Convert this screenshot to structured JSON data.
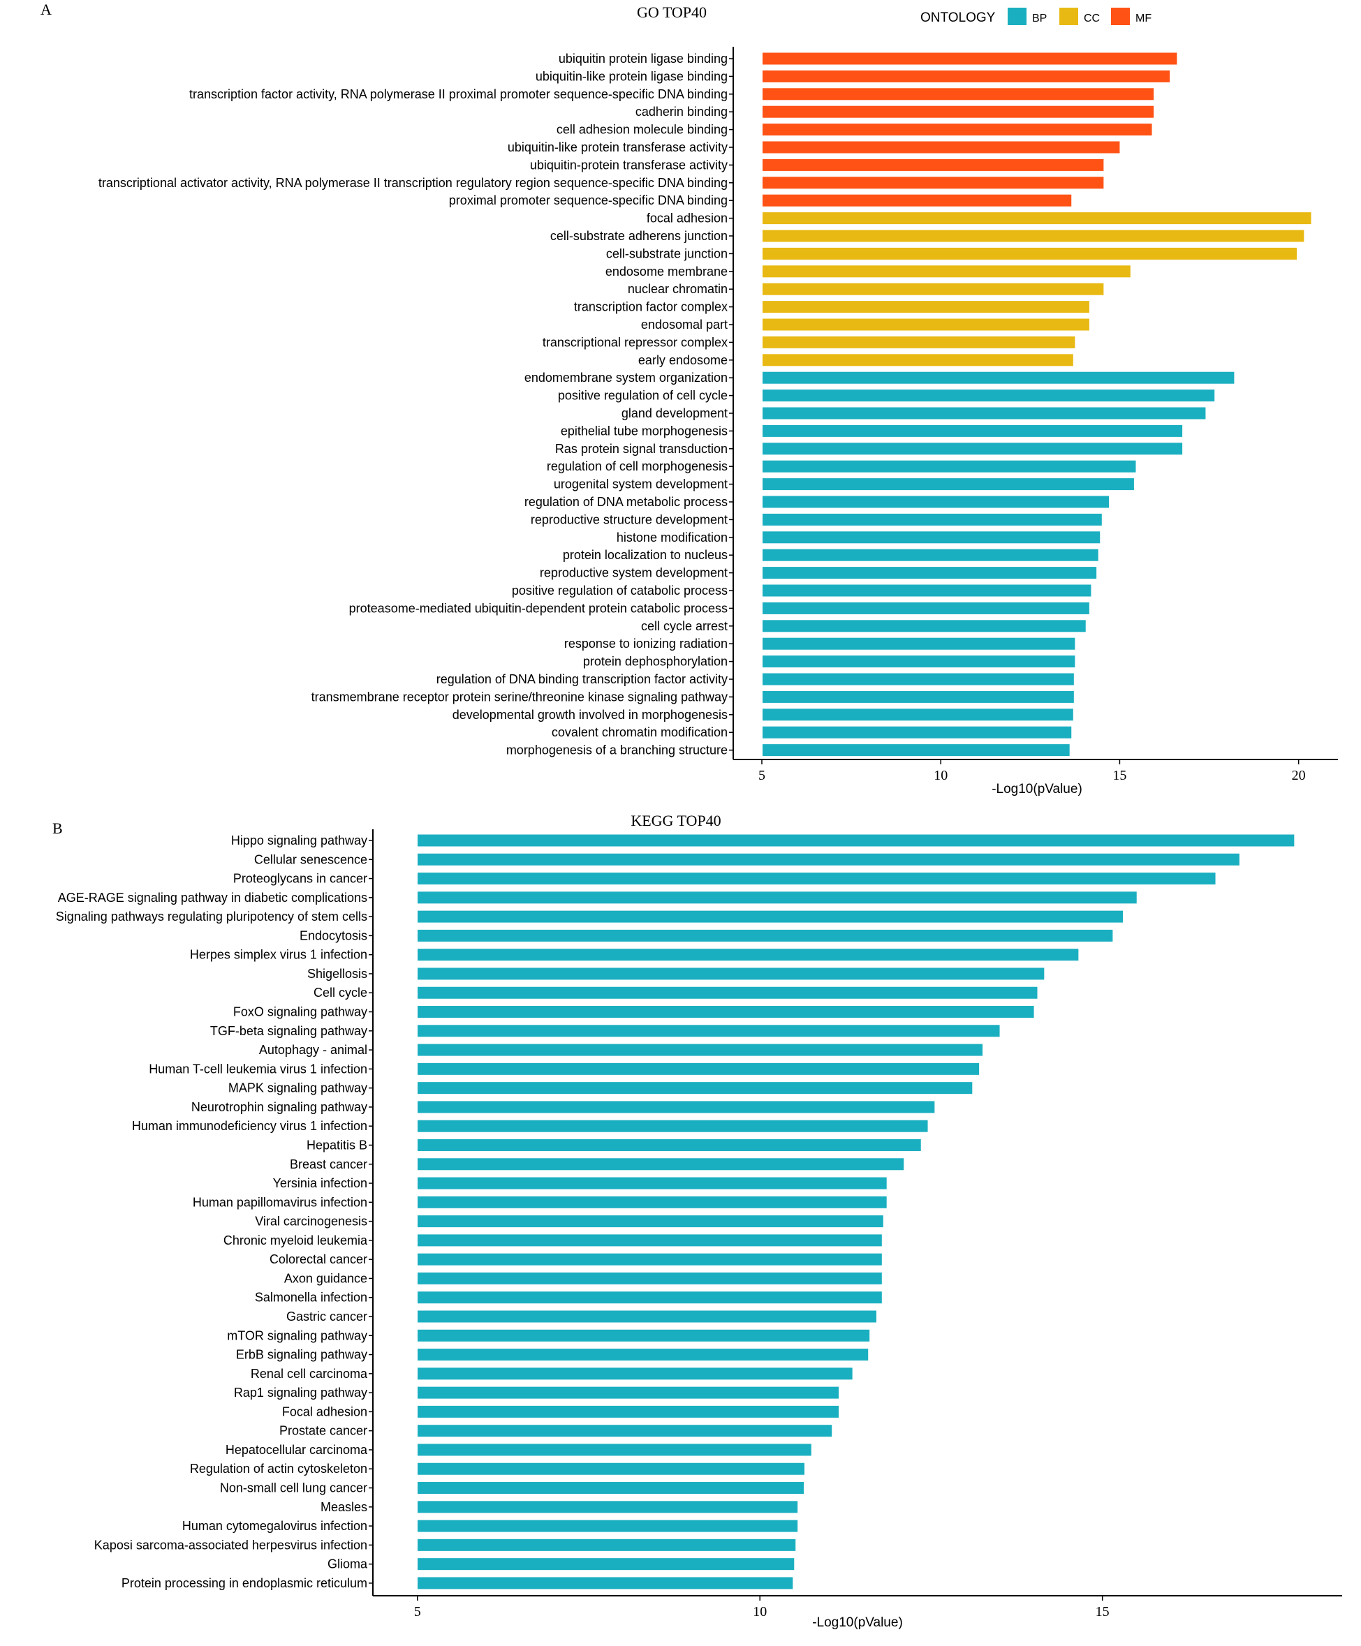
{
  "panel_a": {
    "letter": "A",
    "legend": {
      "title": "ONTOLOGY",
      "items": [
        {
          "label": "BP",
          "color": "#1AAFC0"
        },
        {
          "label": "CC",
          "color": "#E8B912"
        },
        {
          "label": "MF",
          "color": "#FF5214"
        }
      ]
    }
  },
  "panel_b": {
    "letter": "B"
  },
  "chart_data": [
    {
      "type": "bar",
      "orientation": "horizontal",
      "title": "GO TOP40",
      "xlabel": "-Log10(pValue)",
      "ylabel": "",
      "xlim": [
        4.2,
        21.1
      ],
      "xticks": [
        5,
        10,
        15,
        20
      ],
      "legend_position": "top-right",
      "categories": [
        "ubiquitin protein ligase binding",
        "ubiquitin-like protein ligase binding",
        "transcription factor activity, RNA polymerase II proximal promoter sequence-specific DNA binding",
        "cadherin binding",
        "cell adhesion molecule binding",
        "ubiquitin-like protein transferase activity",
        "ubiquitin-protein transferase activity",
        "transcriptional activator activity, RNA polymerase II transcription regulatory region sequence-specific DNA binding",
        "proximal promoter sequence-specific DNA binding",
        "focal adhesion",
        "cell-substrate adherens junction",
        "cell-substrate junction",
        "endosome membrane",
        "nuclear chromatin",
        "transcription factor complex",
        "endosomal part",
        "transcriptional repressor complex",
        "early endosome",
        "endomembrane system organization",
        "positive regulation of cell cycle",
        "gland development",
        "epithelial tube morphogenesis",
        "Ras protein signal transduction",
        "regulation of cell morphogenesis",
        "urogenital system development",
        "regulation of DNA metabolic process",
        "reproductive structure development",
        "histone modification",
        "protein localization to nucleus",
        "reproductive system development",
        "positive regulation of catabolic process",
        "proteasome-mediated ubiquitin-dependent protein catabolic process",
        "cell cycle arrest",
        "response to ionizing radiation",
        "protein dephosphorylation",
        "regulation of DNA binding transcription factor activity",
        "transmembrane receptor protein serine/threonine kinase signaling pathway",
        "developmental growth involved in morphogenesis",
        "covalent chromatin modification",
        "morphogenesis of a branching structure"
      ],
      "values": [
        16.6,
        16.4,
        15.95,
        15.95,
        15.9,
        15.0,
        14.55,
        14.55,
        13.65,
        20.35,
        20.15,
        19.95,
        15.3,
        14.55,
        14.15,
        14.15,
        13.75,
        13.7,
        18.2,
        17.65,
        17.4,
        16.75,
        16.75,
        15.45,
        15.4,
        14.7,
        14.5,
        14.45,
        14.4,
        14.35,
        14.2,
        14.15,
        14.05,
        13.75,
        13.75,
        13.72,
        13.72,
        13.7,
        13.65,
        13.6
      ],
      "ontology": [
        "MF",
        "MF",
        "MF",
        "MF",
        "MF",
        "MF",
        "MF",
        "MF",
        "MF",
        "CC",
        "CC",
        "CC",
        "CC",
        "CC",
        "CC",
        "CC",
        "CC",
        "CC",
        "BP",
        "BP",
        "BP",
        "BP",
        "BP",
        "BP",
        "BP",
        "BP",
        "BP",
        "BP",
        "BP",
        "BP",
        "BP",
        "BP",
        "BP",
        "BP",
        "BP",
        "BP",
        "BP",
        "BP",
        "BP",
        "BP"
      ]
    },
    {
      "type": "bar",
      "orientation": "horizontal",
      "title": "KEGG TOP40",
      "xlabel": "-Log10(pValue)",
      "ylabel": "",
      "xlim": [
        4.35,
        18.5
      ],
      "xticks": [
        5,
        10,
        15
      ],
      "bar_color": "#1AAFC0",
      "categories": [
        "Hippo signaling pathway",
        "Cellular senescence",
        "Proteoglycans in cancer",
        "AGE-RAGE signaling pathway in diabetic complications",
        "Signaling pathways regulating pluripotency of stem cells",
        "Endocytosis",
        "Herpes simplex virus 1 infection",
        "Shigellosis",
        "Cell cycle",
        "FoxO signaling pathway",
        "TGF-beta signaling pathway",
        "Autophagy - animal",
        "Human T-cell leukemia virus 1 infection",
        "MAPK signaling pathway",
        "Neurotrophin signaling pathway",
        "Human immunodeficiency virus 1 infection",
        "Hepatitis B",
        "Breast cancer",
        "Yersinia infection",
        "Human papillomavirus infection",
        "Viral carcinogenesis",
        "Chronic myeloid leukemia",
        "Colorectal cancer",
        "Axon guidance",
        "Salmonella infection",
        "Gastric cancer",
        "mTOR signaling pathway",
        "ErbB signaling pathway",
        "Renal cell carcinoma",
        "Rap1 signaling pathway",
        "Focal adhesion",
        "Prostate cancer",
        "Hepatocellular carcinoma",
        "Regulation of actin cytoskeleton",
        "Non-small cell lung cancer",
        "Measles",
        "Human cytomegalovirus infection",
        "Kaposi sarcoma-associated herpesvirus infection",
        "Glioma",
        "Protein processing in endoplasmic reticulum"
      ],
      "values": [
        17.8,
        17.0,
        16.65,
        15.5,
        15.3,
        15.15,
        14.65,
        14.15,
        14.05,
        14.0,
        13.5,
        13.25,
        13.2,
        13.1,
        12.55,
        12.45,
        12.35,
        12.1,
        11.85,
        11.85,
        11.8,
        11.78,
        11.78,
        11.78,
        11.78,
        11.7,
        11.6,
        11.58,
        11.35,
        11.15,
        11.15,
        11.05,
        10.75,
        10.65,
        10.64,
        10.55,
        10.55,
        10.52,
        10.5,
        10.48
      ]
    }
  ]
}
